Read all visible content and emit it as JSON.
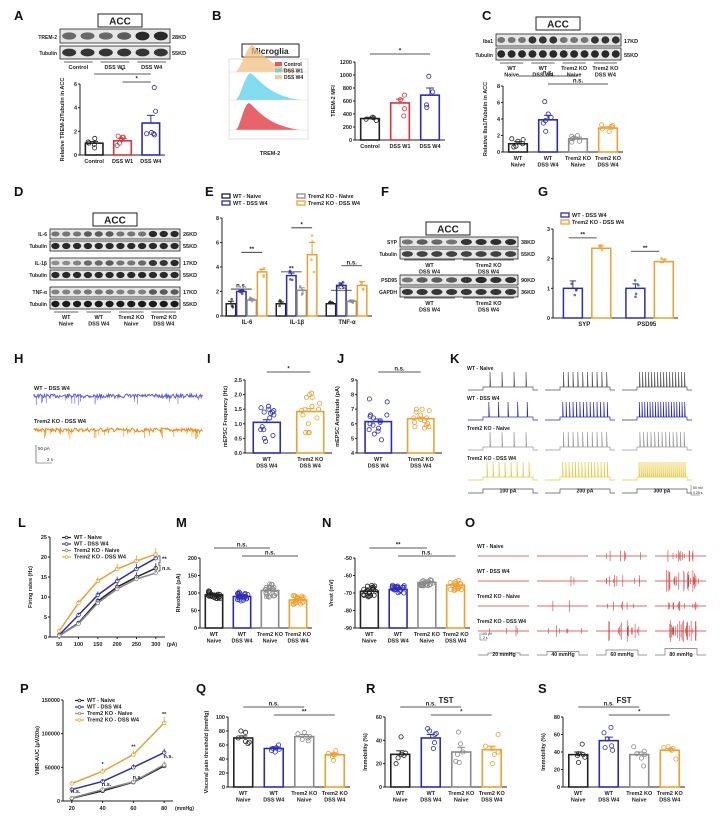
{
  "colors": {
    "black": "#222222",
    "red": "#e0303a",
    "blue": "#2b2bb8",
    "gray": "#8a8a8a",
    "orange": "#f0a030",
    "yellow": "#e8c840",
    "cyan": "#56d0e8",
    "peach": "#f0c080"
  },
  "panels": {
    "A": {
      "label": "A",
      "region": "ACC",
      "blots": [
        {
          "name": "TREM-2",
          "size": "28KD"
        },
        {
          "name": "Tubulin",
          "size": "55KD"
        }
      ],
      "groups": [
        "Control",
        "DSS W1",
        "DSS W4"
      ]
    },
    "B": {
      "label": "B",
      "title": "Microglia",
      "legend": [
        "Control",
        "DSS W1",
        "DSS W4"
      ],
      "xlabel": "TREM-2"
    },
    "C": {
      "label": "C",
      "region": "ACC",
      "blots": [
        {
          "name": "Iba1",
          "size": "17KD"
        },
        {
          "name": "Tubulin",
          "size": "55KD"
        }
      ],
      "groups": [
        "WT\nNaive",
        "WT\nDSS W4",
        "Trem2 KO\nNaive",
        "Trem2 KO\nDSS W4"
      ]
    },
    "D": {
      "label": "D",
      "region": "ACC",
      "blots": [
        {
          "name": "IL-6",
          "size": "26KD"
        },
        {
          "name": "Tubulin",
          "size": "55KD"
        },
        {
          "name": "IL-1β",
          "size": "17KD"
        },
        {
          "name": "Tubulin",
          "size": "55KD"
        },
        {
          "name": "TNF-α",
          "size": "17KD"
        },
        {
          "name": "Tubulin",
          "size": "55KD"
        }
      ],
      "groups": [
        "WT\nNaive",
        "WT\nDSS W4",
        "Trem2 KO\nNaive",
        "Trem2 KO\nDSS W4"
      ]
    },
    "E": {
      "label": "E"
    },
    "F": {
      "label": "F",
      "region": "ACC",
      "blots": [
        {
          "name": "SYP",
          "size": "38KD"
        },
        {
          "name": "Tubulin",
          "size": "55KD"
        },
        {
          "name": "PSD95",
          "size": "90KD"
        },
        {
          "name": "GAPDH",
          "size": "36KD"
        }
      ],
      "groups": [
        "WT\nDSS W4",
        "Trem2 KO\nDSS W4"
      ]
    },
    "G": {
      "label": "G"
    },
    "H": {
      "label": "H",
      "traces": [
        "WT – DSS W4",
        "Trem2 KO - DSS W4"
      ],
      "scale_y": "50 pA",
      "scale_x": "2 s"
    },
    "I": {
      "label": "I"
    },
    "J": {
      "label": "J"
    },
    "K": {
      "label": "K",
      "rows": [
        "WT - Naive",
        "WT - DSS W4",
        "Trem2 KO - Naive",
        "Trem2 KO - DSS W4"
      ],
      "steps": [
        "100 pA",
        "200 pA",
        "300 pA"
      ],
      "scale_y": "50 mV",
      "scale_x": "0.25 s"
    },
    "L": {
      "label": "L"
    },
    "M": {
      "label": "M"
    },
    "N": {
      "label": "N"
    },
    "O": {
      "label": "O",
      "rows": [
        "WT - Naive",
        "WT - DSS W4",
        "Trem2 KO - Naive",
        "Trem2 KO - DSS W4"
      ],
      "steps": [
        "20 mmHg",
        "40 mmHg",
        "60 mmHg",
        "80 mmHg"
      ],
      "scale_y": "100 μV",
      "scale_x": "2 s"
    },
    "P": {
      "label": "P"
    },
    "Q": {
      "label": "Q"
    },
    "R": {
      "label": "R"
    },
    "S": {
      "label": "S"
    }
  },
  "chart_data": [
    {
      "id": "A",
      "type": "bar",
      "categories": [
        "Control",
        "DSS W1",
        "DSS W4"
      ],
      "values": [
        1.0,
        1.2,
        2.7
      ],
      "errors": [
        0.15,
        0.2,
        0.65
      ],
      "ylabel": "Relative TREM-2/Tubulin in ACC",
      "ylim": [
        0,
        6
      ],
      "yticks": [
        0,
        2,
        4,
        6
      ],
      "colors": [
        "black",
        "red",
        "blue"
      ],
      "sig": [
        {
          "from": 0,
          "to": 2,
          "label": "*"
        },
        {
          "from": 1,
          "to": 2,
          "label": "*"
        }
      ],
      "points": [
        [
          1.4,
          1.0,
          0.6,
          1.1,
          0.9
        ],
        [
          1.5,
          1.3,
          0.8,
          1.5,
          1.0,
          1.6
        ],
        [
          5.7,
          3.7,
          1.8,
          1.7,
          1.8,
          1.9
        ]
      ]
    },
    {
      "id": "B",
      "type": "bar",
      "categories": [
        "Control",
        "DSS W1",
        "DSS W4"
      ],
      "values": [
        330,
        570,
        690
      ],
      "errors": [
        20,
        60,
        110
      ],
      "ylabel": "TREM-2 MFI",
      "ylim": [
        0,
        1200
      ],
      "yticks": [
        0,
        200,
        400,
        600,
        800,
        1000,
        1200
      ],
      "colors": [
        "black",
        "red",
        "blue"
      ],
      "sig": [
        {
          "from": 0,
          "to": 2,
          "label": "*"
        }
      ],
      "points": [
        [
          340,
          300,
          320,
          350
        ],
        [
          690,
          620,
          480,
          370
        ],
        [
          980,
          740,
          540,
          500
        ]
      ]
    },
    {
      "id": "C",
      "type": "bar",
      "categories": [
        "WT\nNaive",
        "WT\nDSS W4",
        "Trem2 KO\nNaive",
        "Trem2 KO\nDSS W4"
      ],
      "values": [
        1.0,
        3.9,
        1.6,
        2.9
      ],
      "errors": [
        0.25,
        0.55,
        0.2,
        0.15
      ],
      "ylabel": "Relative Iba1/Tubulin in ACC",
      "ylim": [
        0,
        8
      ],
      "yticks": [
        0,
        2,
        4,
        6,
        8
      ],
      "colors": [
        "black",
        "blue",
        "gray",
        "orange"
      ],
      "sig": [
        {
          "from": 0,
          "to": 2,
          "label": "n.s."
        },
        {
          "from": 1,
          "to": 3,
          "label": "n.s."
        }
      ],
      "points": [
        [
          1.6,
          1.5,
          1.0,
          0.7,
          0.6,
          1.3
        ],
        [
          6.1,
          4.6,
          3.8,
          3.5,
          2.5,
          4.2
        ],
        [
          2.0,
          1.9,
          1.7,
          1.3,
          1.2,
          1.6
        ],
        [
          3.3,
          3.1,
          3.0,
          2.8,
          2.5,
          3.2
        ]
      ]
    },
    {
      "id": "E",
      "type": "bar",
      "categories": [
        "IL-6",
        "IL-1β",
        "TNF-α"
      ],
      "series": [
        {
          "name": "WT - Naive",
          "color": "black",
          "values": [
            1.0,
            1.0,
            1.0
          ],
          "errors": [
            0.2,
            0.15,
            0.1
          ]
        },
        {
          "name": "WT - DSS W4",
          "color": "blue",
          "values": [
            2.0,
            3.3,
            2.5
          ],
          "errors": [
            0.1,
            0.2,
            0.2
          ]
        },
        {
          "name": "Trem2 KO - Naive",
          "color": "gray",
          "values": [
            1.3,
            2.1,
            1.2
          ],
          "errors": [
            0.1,
            0.2,
            0.1
          ]
        },
        {
          "name": "Trem2 KO - DSS W4",
          "color": "orange",
          "values": [
            3.6,
            5.0,
            2.5
          ],
          "errors": [
            0.2,
            1.0,
            0.3
          ]
        }
      ],
      "ylim": [
        0,
        8
      ],
      "yticks": [
        0,
        2,
        4,
        6,
        8
      ],
      "legend": "top",
      "sig": [
        {
          "cat": 0,
          "from": 0,
          "to": 2,
          "label": "n.s."
        },
        {
          "cat": 0,
          "from": 1,
          "to": 3,
          "label": "**"
        },
        {
          "cat": 1,
          "from": 0,
          "to": 2,
          "label": "**"
        },
        {
          "cat": 1,
          "from": 1,
          "to": 3,
          "label": "*"
        },
        {
          "cat": 2,
          "from": 0,
          "to": 2,
          "label": "n.s."
        },
        {
          "cat": 2,
          "from": 1,
          "to": 3,
          "label": "n.s."
        }
      ]
    },
    {
      "id": "G",
      "type": "bar",
      "categories": [
        "SYP",
        "PSD95"
      ],
      "series": [
        {
          "name": "WT - DSS W4",
          "color": "blue",
          "values": [
            1.0,
            1.0
          ],
          "errors": [
            0.25,
            0.15
          ]
        },
        {
          "name": "Trem2 KO - DSS W4",
          "color": "orange",
          "values": [
            2.35,
            1.9
          ],
          "errors": [
            0.08,
            0.08
          ]
        }
      ],
      "ylim": [
        0,
        3
      ],
      "yticks": [
        0,
        1,
        2,
        3
      ],
      "legend": "top-left",
      "sig": [
        {
          "cat": 0,
          "label": "**"
        },
        {
          "cat": 1,
          "label": "**"
        }
      ]
    },
    {
      "id": "I",
      "type": "bar",
      "categories": [
        "WT\nDSS W4",
        "Trem2 KO\nDSS W4"
      ],
      "values": [
        1.05,
        1.42
      ],
      "errors": [
        0.09,
        0.1
      ],
      "ylabel": "mEPSC Frequency (Hz)",
      "ylim": [
        0,
        2.5
      ],
      "yticks": [
        "0.0",
        "0.5",
        "1.0",
        "1.5",
        "2.0",
        "2.5"
      ],
      "colors": [
        "blue",
        "orange"
      ],
      "sig": [
        {
          "from": 0,
          "to": 1,
          "label": "*"
        }
      ]
    },
    {
      "id": "J",
      "type": "bar",
      "categories": [
        "WT\nDSS W4",
        "Trem2 KO\nDSS W4"
      ],
      "values": [
        6.15,
        6.35
      ],
      "errors": [
        0.18,
        0.1
      ],
      "ylabel": "mEPSC Amplitude (pA)",
      "ylim": [
        4,
        9
      ],
      "yticks": [
        4,
        5,
        6,
        7,
        8,
        9
      ],
      "colors": [
        "blue",
        "orange"
      ],
      "sig": [
        {
          "from": 0,
          "to": 1,
          "label": "n.s."
        }
      ]
    },
    {
      "id": "L",
      "type": "line",
      "x": [
        50,
        100,
        150,
        200,
        250,
        300
      ],
      "xunit": "(pA)",
      "ylabel": "Firing rates (Hz)",
      "ylim": [
        0,
        25
      ],
      "yticks": [
        0,
        5,
        10,
        15,
        20,
        25
      ],
      "series": [
        {
          "name": "WT - Naive",
          "color": "black",
          "values": [
            0.3,
            3.5,
            9.0,
            12.5,
            15.0,
            17.2
          ]
        },
        {
          "name": "WT - DSS W4",
          "color": "blue",
          "values": [
            0.5,
            5.5,
            10.5,
            14.0,
            17.0,
            19.7
          ]
        },
        {
          "name": "Trem2 KO - Naive",
          "color": "gray",
          "values": [
            0.3,
            3.3,
            8.5,
            12.0,
            14.5,
            16.0
          ]
        },
        {
          "name": "Trem2 KO - DSS W4",
          "color": "orange",
          "values": [
            1.5,
            8.5,
            14.0,
            17.0,
            19.0,
            20.7
          ]
        }
      ],
      "annotations": [
        "**",
        "n.s."
      ],
      "legend": "top-left"
    },
    {
      "id": "M",
      "type": "bar",
      "categories": [
        "WT\nNaive",
        "WT\nDSS W4",
        "Trem2 KO\nNaive",
        "Trem2 KO\nDSS W4"
      ],
      "values": [
        95,
        90,
        107,
        80
      ],
      "errors": [
        4,
        5,
        7,
        5
      ],
      "ylabel": "Rheobase (pA)",
      "ylim": [
        0,
        200
      ],
      "yticks": [
        0,
        50,
        100,
        150,
        200
      ],
      "colors": [
        "black",
        "blue",
        "gray",
        "orange"
      ],
      "sig": [
        {
          "from": 0,
          "to": 2,
          "label": "n.s."
        },
        {
          "from": 1,
          "to": 3,
          "label": "n.s."
        }
      ]
    },
    {
      "id": "N",
      "type": "bar",
      "categories": [
        "WT\nNaive",
        "WT\nDSS W4",
        "Trem2 KO\nNaive",
        "Trem2 KO\nDSS W4"
      ],
      "values": [
        -69,
        -68,
        -64,
        -65.5
      ],
      "errors": [
        1.2,
        1.0,
        0.8,
        1.2
      ],
      "ylabel": "Vrest (mV)",
      "ylim": [
        -90,
        -50
      ],
      "yticks": [
        -90,
        -80,
        -70,
        -60,
        -50
      ],
      "inverted": true,
      "colors": [
        "black",
        "blue",
        "gray",
        "orange"
      ],
      "sig": [
        {
          "from": 0,
          "to": 2,
          "label": "**"
        },
        {
          "from": 1,
          "to": 3,
          "label": "n.s."
        }
      ]
    },
    {
      "id": "P",
      "type": "line",
      "x": [
        20,
        40,
        60,
        80
      ],
      "xunit": "(mmHg)",
      "ylabel": "VMR-AUC (μV/20s)",
      "ylim": [
        0,
        150000
      ],
      "yticks": [
        0,
        50000,
        100000,
        150000
      ],
      "series": [
        {
          "name": "WT - Naive",
          "color": "black",
          "values": [
            4000,
            15000,
            28000,
            52000
          ]
        },
        {
          "name": "WT - DSS W4",
          "color": "blue",
          "values": [
            17000,
            29000,
            50000,
            72000
          ]
        },
        {
          "name": "Trem2 KO - Naive",
          "color": "gray",
          "values": [
            4500,
            17000,
            28500,
            54000
          ]
        },
        {
          "name": "Trem2 KO - DSS W4",
          "color": "orange",
          "values": [
            26000,
            44000,
            69000,
            116000
          ]
        }
      ],
      "annotations": [
        {
          "x": 20,
          "label": "n.s."
        },
        {
          "x": 40,
          "label": "*"
        },
        {
          "x": 40,
          "label": "n.s."
        },
        {
          "x": 60,
          "label": "**"
        },
        {
          "x": 60,
          "label": "n.s."
        },
        {
          "x": 80,
          "label": "**"
        },
        {
          "x": 80,
          "label": "n.s."
        }
      ],
      "legend": "top-left"
    },
    {
      "id": "Q",
      "type": "bar",
      "categories": [
        "WT\nNaive",
        "WT\nDSS W4",
        "Trem2 KO\nNaive",
        "Trem2 KO\nDSS W4"
      ],
      "values": [
        70,
        55,
        72,
        46
      ],
      "errors": [
        3,
        2,
        3,
        2
      ],
      "ylabel": "Visceral pain threshold (mmHg)",
      "ylim": [
        0,
        100
      ],
      "yticks": [
        0,
        20,
        40,
        60,
        80,
        100
      ],
      "colors": [
        "black",
        "blue",
        "gray",
        "orange"
      ],
      "sig": [
        {
          "from": 0,
          "to": 2,
          "label": "n.s."
        },
        {
          "from": 1,
          "to": 3,
          "label": "**"
        }
      ]
    },
    {
      "id": "R",
      "type": "bar",
      "title": "TST",
      "categories": [
        "WT\nNaive",
        "WT\nDSS W4",
        "Trem2 KO\nNaive",
        "Trem2 KO\nDSS W4"
      ],
      "values": [
        28,
        42,
        30,
        32
      ],
      "errors": [
        3,
        3,
        4,
        3
      ],
      "ylabel": "Immobility (%)",
      "ylim": [
        0,
        60
      ],
      "yticks": [
        0,
        20,
        40,
        60
      ],
      "colors": [
        "black",
        "blue",
        "gray",
        "orange"
      ],
      "sig": [
        {
          "from": 0,
          "to": 2,
          "label": "n.s."
        },
        {
          "from": 1,
          "to": 3,
          "label": "*"
        }
      ]
    },
    {
      "id": "S",
      "type": "bar",
      "title": "FST",
      "categories": [
        "WT\nNaive",
        "WT\nDSS W4",
        "Trem2 KO\nNaive",
        "Trem2 KO\nDSS W4"
      ],
      "values": [
        37,
        53,
        37,
        42
      ],
      "errors": [
        3,
        4,
        3,
        2
      ],
      "ylabel": "Immobility (%)",
      "ylim": [
        0,
        80
      ],
      "yticks": [
        0,
        20,
        40,
        60,
        80
      ],
      "colors": [
        "black",
        "blue",
        "gray",
        "orange"
      ],
      "sig": [
        {
          "from": 0,
          "to": 2,
          "label": "n.s."
        },
        {
          "from": 1,
          "to": 3,
          "label": "*"
        }
      ]
    }
  ]
}
